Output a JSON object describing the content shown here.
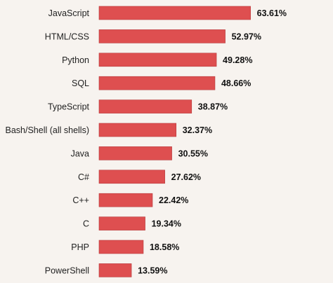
{
  "chart_data": {
    "type": "bar",
    "orientation": "horizontal",
    "title": "",
    "xlabel": "",
    "ylabel": "",
    "xlim": [
      0,
      70
    ],
    "grid": false,
    "categories": [
      "JavaScript",
      "HTML/CSS",
      "Python",
      "SQL",
      "TypeScript",
      "Bash/Shell (all shells)",
      "Java",
      "C#",
      "C++",
      "C",
      "PHP",
      "PowerShell"
    ],
    "values": [
      63.61,
      52.97,
      49.28,
      48.66,
      38.87,
      32.37,
      30.55,
      27.62,
      22.42,
      19.34,
      18.58,
      13.59
    ],
    "value_labels": [
      "63.61%",
      "52.97%",
      "49.28%",
      "48.66%",
      "38.87%",
      "32.37%",
      "30.55%",
      "27.62%",
      "22.42%",
      "19.34%",
      "18.58%",
      "13.59%"
    ],
    "colors": {
      "bar": "#de4f50",
      "bar_edge": "#b63a3b",
      "background": "#f7f3ef"
    }
  }
}
